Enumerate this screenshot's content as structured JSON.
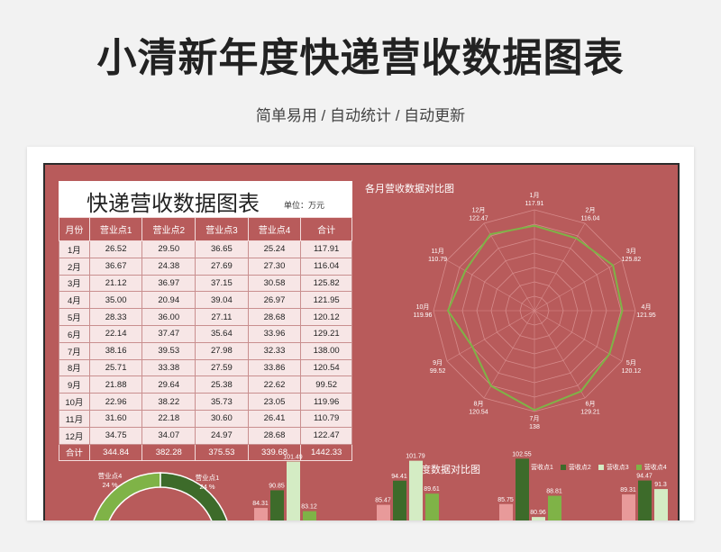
{
  "page": {
    "title": "小清新年度快递营收数据图表",
    "subtitle": "简单易用 / 自动统计 / 自动更新"
  },
  "table": {
    "title": "快递营收数据图表",
    "unit": "单位：万元",
    "headers": [
      "月份",
      "营业点1",
      "营业点2",
      "营业点3",
      "营业点4",
      "合计"
    ],
    "rows": [
      [
        "1月",
        "26.52",
        "29.50",
        "36.65",
        "25.24",
        "117.91"
      ],
      [
        "2月",
        "36.67",
        "24.38",
        "27.69",
        "27.30",
        "116.04"
      ],
      [
        "3月",
        "21.12",
        "36.97",
        "37.15",
        "30.58",
        "125.82"
      ],
      [
        "4月",
        "35.00",
        "20.94",
        "39.04",
        "26.97",
        "121.95"
      ],
      [
        "5月",
        "28.33",
        "36.00",
        "27.11",
        "28.68",
        "120.12"
      ],
      [
        "6月",
        "22.14",
        "37.47",
        "35.64",
        "33.96",
        "129.21"
      ],
      [
        "7月",
        "38.16",
        "39.53",
        "27.98",
        "32.33",
        "138.00"
      ],
      [
        "8月",
        "25.71",
        "33.38",
        "27.59",
        "33.86",
        "120.54"
      ],
      [
        "9月",
        "21.88",
        "29.64",
        "25.38",
        "22.62",
        "99.52"
      ],
      [
        "10月",
        "22.96",
        "38.22",
        "35.73",
        "23.05",
        "119.96"
      ],
      [
        "11月",
        "31.60",
        "22.18",
        "30.60",
        "26.41",
        "110.79"
      ],
      [
        "12月",
        "34.75",
        "34.07",
        "24.97",
        "28.68",
        "122.47"
      ]
    ],
    "total": [
      "合计",
      "344.84",
      "382.28",
      "375.53",
      "339.68",
      "1442.33"
    ]
  },
  "chart_data": [
    {
      "type": "radar",
      "title": "各月营收数据对比图",
      "categories": [
        "1月",
        "2月",
        "3月",
        "4月",
        "5月",
        "6月",
        "7月",
        "8月",
        "9月",
        "10月",
        "11月",
        "12月"
      ],
      "values": [
        117.91,
        116.04,
        125.82,
        121.95,
        120.12,
        129.21,
        138.0,
        120.54,
        99.52,
        119.96,
        110.79,
        122.47
      ],
      "rmax": 140,
      "line_color": "#7fb347"
    },
    {
      "type": "bar",
      "title": "季度数据对比图",
      "legend": [
        "营收点1",
        "营收点2",
        "营收点3",
        "营收点4"
      ],
      "colors": [
        "#e89a9a",
        "#3d6b2a",
        "#d4ecc4",
        "#7fb347"
      ],
      "visible_value_labels": [
        [
          "84.31",
          "90.85",
          "101.49",
          "83.12"
        ],
        [
          "85.47",
          "94.41",
          "101.79",
          "89.61"
        ],
        [
          "85.75",
          "102.55",
          "80.96",
          "88.81"
        ],
        [
          "89.31",
          "94.47",
          "91.3"
        ]
      ]
    },
    {
      "type": "pie",
      "labels": [
        "营业点4",
        "营业点1"
      ],
      "percent_labels": [
        "24 %",
        "24 %"
      ],
      "colors": [
        "#7fb347",
        "#3d6b2a"
      ]
    }
  ]
}
